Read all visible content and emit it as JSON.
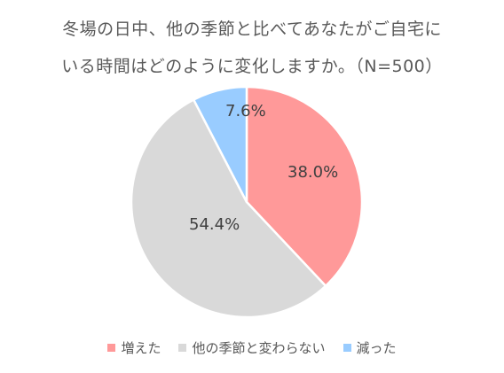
{
  "chart_data": {
    "type": "pie",
    "title_lines": [
      "冬場の日中、他の季節と比べてあなたがご自宅に",
      "いる時間はどのように変化しますか。（N=500）"
    ],
    "slices": [
      {
        "name": "増えた",
        "value": 38.0,
        "label": "38.0%",
        "color": "#ff9999"
      },
      {
        "name": "他の季節と変わらない",
        "value": 54.4,
        "label": "54.4%",
        "color": "#d9d9d9"
      },
      {
        "name": "減った",
        "value": 7.6,
        "label": "7.6%",
        "color": "#99ccff"
      }
    ],
    "start_angle_deg": 0,
    "direction": "clockwise",
    "legend_position": "bottom",
    "slice_border_color": "#ffffff"
  }
}
